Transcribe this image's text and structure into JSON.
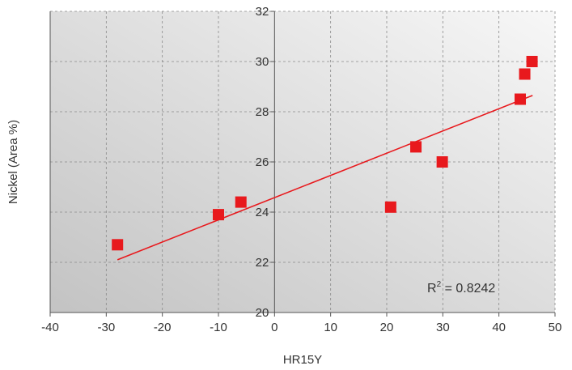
{
  "chart_data": {
    "type": "scatter",
    "title": "",
    "xlabel": "HR15Y",
    "ylabel": "Nickel (Area %)",
    "xlim": [
      -40,
      50
    ],
    "ylim": [
      20,
      32
    ],
    "xticks": [
      -40,
      -30,
      -20,
      -10,
      0,
      10,
      20,
      30,
      40,
      50
    ],
    "yticks": [
      20,
      22,
      24,
      26,
      28,
      30,
      32
    ],
    "grid": true,
    "legend": "none",
    "marker_color": "#e8191d",
    "trendline_color": "#e8191d",
    "points": [
      {
        "x": -28,
        "y": 22.7
      },
      {
        "x": -10,
        "y": 23.9
      },
      {
        "x": -6,
        "y": 24.4
      },
      {
        "x": 20.7,
        "y": 24.2
      },
      {
        "x": 25.2,
        "y": 26.6
      },
      {
        "x": 29.9,
        "y": 26.0
      },
      {
        "x": 43.8,
        "y": 28.5
      },
      {
        "x": 44.6,
        "y": 29.5
      },
      {
        "x": 45.9,
        "y": 30.0
      }
    ],
    "trendline": {
      "type": "linear",
      "start": {
        "x": -28,
        "y": 22.1
      },
      "end": {
        "x": 46,
        "y": 28.65
      }
    },
    "annotation": {
      "r2_prefix": "R",
      "r2_sup": "2",
      "r2_value": " = 0.8242"
    }
  }
}
